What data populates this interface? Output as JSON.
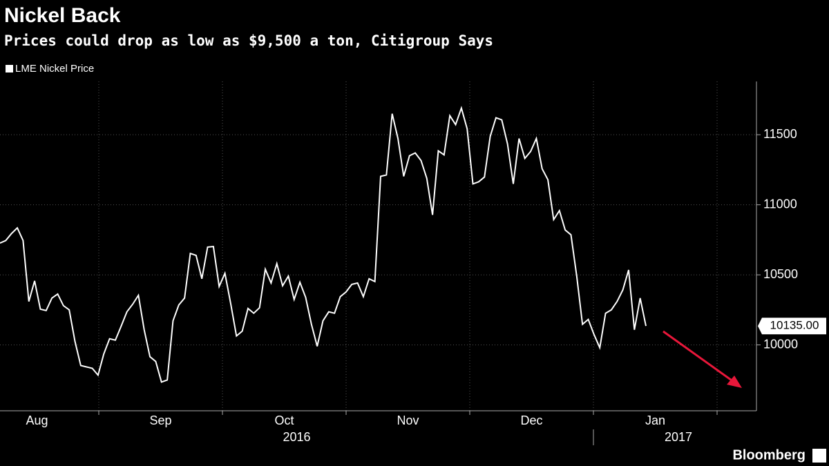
{
  "chart_data": {
    "type": "line",
    "title": "Nickel Back",
    "subtitle": "Prices could drop as low as $9,500 a ton, Citigroup Says",
    "series": [
      {
        "name": "LME Nickel Price",
        "color": "#ffffff",
        "values": [
          10727,
          10745,
          10795,
          10835,
          10745,
          10310,
          10457,
          10255,
          10245,
          10334,
          10363,
          10280,
          10250,
          10025,
          9853,
          9843,
          9833,
          9784,
          9936,
          10044,
          10034,
          10133,
          10236,
          10290,
          10354,
          10108,
          9916,
          9882,
          9735,
          9750,
          10172,
          10285,
          10334,
          10653,
          10639,
          10472,
          10698,
          10702,
          10417,
          10511,
          10295,
          10064,
          10098,
          10260,
          10226,
          10265,
          10540,
          10442,
          10580,
          10422,
          10491,
          10324,
          10447,
          10339,
          10147,
          9990,
          10172,
          10236,
          10226,
          10344,
          10378,
          10432,
          10442,
          10344,
          10472,
          10452,
          11203,
          11213,
          11650,
          11473,
          11203,
          11350,
          11370,
          11316,
          11189,
          10928,
          11385,
          11356,
          11636,
          11572,
          11690,
          11542,
          11149,
          11164,
          11198,
          11488,
          11621,
          11606,
          11434,
          11149,
          11473,
          11331,
          11380,
          11473,
          11257,
          11179,
          10894,
          10958,
          10820,
          10786,
          10491,
          10147,
          10182,
          10074,
          9980,
          10226,
          10250,
          10310,
          10393,
          10535,
          10108,
          10334,
          10135
        ]
      }
    ],
    "months": [
      "Aug",
      "Sep",
      "Oct",
      "Nov",
      "Dec",
      "Jan"
    ],
    "years": [
      "2016",
      "2017"
    ],
    "ylim": [
      9530,
      11880
    ],
    "yticks": [
      10000,
      10500,
      11000,
      11500
    ],
    "grid": true,
    "last_value": {
      "value": 10135,
      "label": "10135.00"
    },
    "source": "Bloomberg"
  }
}
